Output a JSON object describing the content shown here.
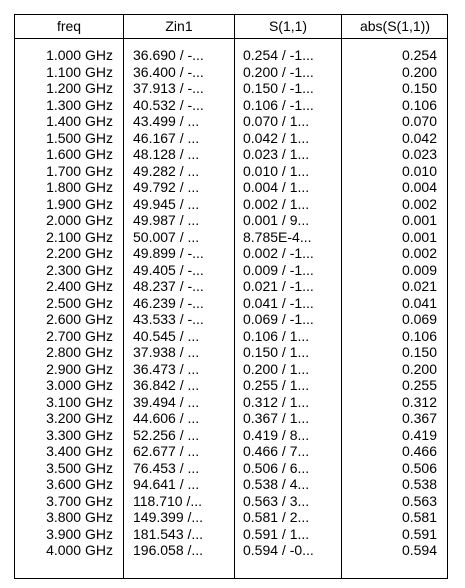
{
  "table": {
    "headers": {
      "freq": "freq",
      "zin": "Zin1",
      "s11": "S(1,1)",
      "abs": "abs(S(1,1))"
    },
    "rows": [
      {
        "freq": "1.000 GHz",
        "zin": "36.690 / -...",
        "s11": "0.254 / -1...",
        "abs": "0.254"
      },
      {
        "freq": "1.100 GHz",
        "zin": "36.400 / -...",
        "s11": "0.200 / -1...",
        "abs": "0.200"
      },
      {
        "freq": "1.200 GHz",
        "zin": "37.913 / -...",
        "s11": "0.150 / -1...",
        "abs": "0.150"
      },
      {
        "freq": "1.300 GHz",
        "zin": "40.532 / -...",
        "s11": "0.106 / -1...",
        "abs": "0.106"
      },
      {
        "freq": "1.400 GHz",
        "zin": "43.499 / ...",
        "s11": "0.070 / 1...",
        "abs": "0.070"
      },
      {
        "freq": "1.500 GHz",
        "zin": "46.167 / ...",
        "s11": "0.042 / 1...",
        "abs": "0.042"
      },
      {
        "freq": "1.600 GHz",
        "zin": "48.128 / ...",
        "s11": "0.023 / 1...",
        "abs": "0.023"
      },
      {
        "freq": "1.700 GHz",
        "zin": "49.282 / ...",
        "s11": "0.010 / 1...",
        "abs": "0.010"
      },
      {
        "freq": "1.800 GHz",
        "zin": "49.792 / ...",
        "s11": "0.004 / 1...",
        "abs": "0.004"
      },
      {
        "freq": "1.900 GHz",
        "zin": "49.945 / ...",
        "s11": "0.002 / 1...",
        "abs": "0.002"
      },
      {
        "freq": "2.000 GHz",
        "zin": "49.987 / ...",
        "s11": "0.001 / 9...",
        "abs": "0.001"
      },
      {
        "freq": "2.100 GHz",
        "zin": "50.007 / ...",
        "s11": "8.785E-4...",
        "abs": "0.001"
      },
      {
        "freq": "2.200 GHz",
        "zin": "49.899 / -...",
        "s11": "0.002 / -1...",
        "abs": "0.002"
      },
      {
        "freq": "2.300 GHz",
        "zin": "49.405 / -...",
        "s11": "0.009 / -1...",
        "abs": "0.009"
      },
      {
        "freq": "2.400 GHz",
        "zin": "48.237 / -...",
        "s11": "0.021 / -1...",
        "abs": "0.021"
      },
      {
        "freq": "2.500 GHz",
        "zin": "46.239 / -...",
        "s11": "0.041 / -1...",
        "abs": "0.041"
      },
      {
        "freq": "2.600 GHz",
        "zin": "43.533 / -...",
        "s11": "0.069 / -1...",
        "abs": "0.069"
      },
      {
        "freq": "2.700 GHz",
        "zin": "40.545 / ...",
        "s11": "0.106 / 1...",
        "abs": "0.106"
      },
      {
        "freq": "2.800 GHz",
        "zin": "37.938 / ...",
        "s11": "0.150 / 1...",
        "abs": "0.150"
      },
      {
        "freq": "2.900 GHz",
        "zin": "36.473 / ...",
        "s11": "0.200 / 1...",
        "abs": "0.200"
      },
      {
        "freq": "3.000 GHz",
        "zin": "36.842 / ...",
        "s11": "0.255 / 1...",
        "abs": "0.255"
      },
      {
        "freq": "3.100 GHz",
        "zin": "39.494 / ...",
        "s11": "0.312 / 1...",
        "abs": "0.312"
      },
      {
        "freq": "3.200 GHz",
        "zin": "44.606 / ...",
        "s11": "0.367 / 1...",
        "abs": "0.367"
      },
      {
        "freq": "3.300 GHz",
        "zin": "52.256 / ...",
        "s11": "0.419 / 8...",
        "abs": "0.419"
      },
      {
        "freq": "3.400 GHz",
        "zin": "62.677 / ...",
        "s11": "0.466 / 7...",
        "abs": "0.466"
      },
      {
        "freq": "3.500 GHz",
        "zin": "76.453 / ...",
        "s11": "0.506 / 6...",
        "abs": "0.506"
      },
      {
        "freq": "3.600 GHz",
        "zin": "94.641 / ...",
        "s11": "0.538 / 4...",
        "abs": "0.538"
      },
      {
        "freq": "3.700 GHz",
        "zin": "118.710 /...",
        "s11": "0.563 / 3...",
        "abs": "0.563"
      },
      {
        "freq": "3.800 GHz",
        "zin": "149.399 /...",
        "s11": "0.581 / 2...",
        "abs": "0.581"
      },
      {
        "freq": "3.900 GHz",
        "zin": "181.543 /...",
        "s11": "0.591 / 1...",
        "abs": "0.591"
      },
      {
        "freq": "4.000 GHz",
        "zin": "196.058 /...",
        "s11": "0.594 / -0...",
        "abs": "0.594"
      }
    ]
  }
}
